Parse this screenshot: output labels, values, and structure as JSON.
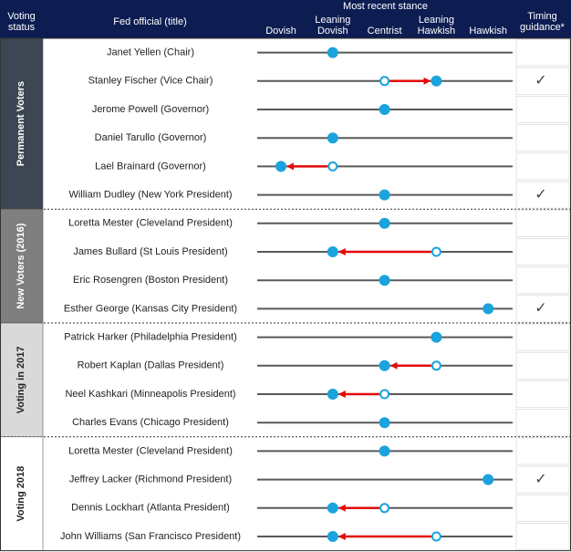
{
  "header": {
    "voting_status": "Voting status",
    "official": "Fed official (title)",
    "stance": "Most recent stance",
    "timing": "Timing guidance*"
  },
  "stances": [
    "Dovish",
    "Leaning Dovish",
    "Centrist",
    "Leaning Hawkish",
    "Hawkish"
  ],
  "groups": [
    {
      "label": "Permanent Voters",
      "rows": [
        {
          "name": "Janet Yellen (Chair)",
          "stance": "Leaning Dovish"
        },
        {
          "name": "Stanley Fischer (Vice Chair)",
          "stance": "Leaning Hawkish",
          "previous": "Centrist",
          "timing": "✓"
        },
        {
          "name": "Jerome Powell (Governor)",
          "stance": "Centrist"
        },
        {
          "name": "Daniel Tarullo (Governor)",
          "stance": "Leaning Dovish"
        },
        {
          "name": "Lael Brainard (Governor)",
          "stance": "Dovish",
          "previous": "Leaning Dovish"
        },
        {
          "name": "William Dudley (New York President)",
          "stance": "Centrist",
          "timing": "✓"
        }
      ]
    },
    {
      "label": "New Voters (2016)",
      "rows": [
        {
          "name": "Loretta Mester (Cleveland President)",
          "stance": "Centrist"
        },
        {
          "name": "James Bullard (St Louis President)",
          "stance": "Leaning Dovish",
          "previous": "Leaning Hawkish"
        },
        {
          "name": "Eric Rosengren (Boston President)",
          "stance": "Centrist"
        },
        {
          "name": "Esther George (Kansas City President)",
          "stance": "Hawkish",
          "timing": "✓"
        }
      ]
    },
    {
      "label": "Voting in 2017",
      "rows": [
        {
          "name": "Patrick Harker (Philadelphia President)",
          "stance": "Leaning Hawkish"
        },
        {
          "name": "Robert Kaplan (Dallas President)",
          "stance": "Centrist",
          "previous": "Leaning Hawkish"
        },
        {
          "name": "Neel Kashkari (Minneapolis President)",
          "stance": "Leaning Dovish",
          "previous": "Centrist"
        },
        {
          "name": "Charles Evans (Chicago President)",
          "stance": "Centrist"
        }
      ]
    },
    {
      "label": "Voting 2018",
      "rows": [
        {
          "name": "Loretta Mester (Cleveland President)",
          "stance": "Centrist"
        },
        {
          "name": "Jeffrey Lacker (Richmond President)",
          "stance": "Hawkish",
          "timing": "✓"
        },
        {
          "name": "Dennis Lockhart (Atlanta President)",
          "stance": "Leaning Dovish",
          "previous": "Centrist"
        },
        {
          "name": "John Williams (San Francisco President)",
          "stance": "Leaning Dovish",
          "previous": "Leaning Hawkish"
        }
      ]
    }
  ]
}
